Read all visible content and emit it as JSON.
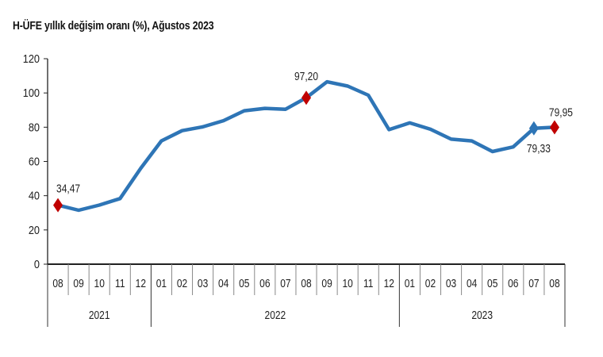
{
  "title": "H-ÜFE yıllık değişim oranı (%), Ağustos 2023",
  "colors": {
    "line": "#2e75b6",
    "marker": "#c00000",
    "axis": "#222222"
  },
  "chart_data": {
    "type": "line",
    "title": "H-ÜFE yıllık değişim oranı (%), Ağustos 2023",
    "xlabel": "",
    "ylabel": "",
    "ylim": [
      0,
      120
    ],
    "yticks": [
      0,
      20,
      40,
      60,
      80,
      100,
      120
    ],
    "grid": false,
    "legend": null,
    "categories": [
      "08",
      "09",
      "10",
      "11",
      "12",
      "01",
      "02",
      "03",
      "04",
      "05",
      "06",
      "07",
      "08",
      "09",
      "10",
      "11",
      "12",
      "01",
      "02",
      "03",
      "04",
      "05",
      "06",
      "07",
      "08"
    ],
    "years": [
      {
        "label": "2021",
        "start": 0,
        "count": 5
      },
      {
        "label": "2022",
        "start": 5,
        "count": 12
      },
      {
        "label": "2023",
        "start": 17,
        "count": 8
      }
    ],
    "series": [
      {
        "name": "H-ÜFE yıllık değişim oranı (%)",
        "values": [
          34.47,
          31.5,
          34.5,
          38.3,
          56.0,
          72.0,
          78.0,
          80.2,
          83.8,
          89.6,
          91.0,
          90.5,
          97.2,
          106.5,
          104.0,
          98.7,
          78.6,
          82.5,
          78.8,
          73.0,
          72.0,
          65.8,
          68.5,
          79.33,
          79.95
        ]
      }
    ],
    "annotations": [
      {
        "index": 0,
        "text": "34,47",
        "marker": "red-diamond"
      },
      {
        "index": 12,
        "text": "97,20",
        "marker": "red-diamond"
      },
      {
        "index": 23,
        "text": "79,33",
        "marker": "blue-diamond"
      },
      {
        "index": 24,
        "text": "79,95",
        "marker": "red-diamond"
      }
    ]
  }
}
